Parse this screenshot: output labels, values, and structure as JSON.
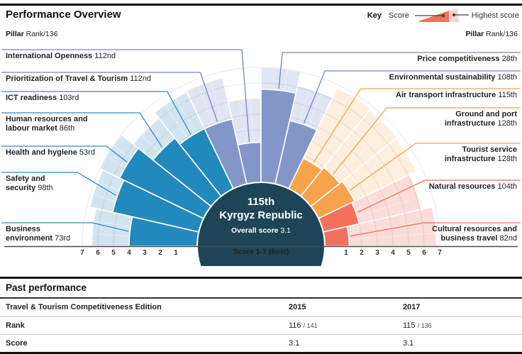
{
  "header": {
    "title": "Performance Overview",
    "key": {
      "label": "Key",
      "score": "Score",
      "highest": "Highest score"
    },
    "pillar_note": {
      "bold": "Pillar",
      "rest": " Rank/136"
    }
  },
  "chart_data": {
    "type": "radial_bar",
    "title": "Performance Overview",
    "scale": {
      "min": 1,
      "max": 7,
      "label": "Score 1-7 (best)"
    },
    "ticks": [
      1,
      2,
      3,
      4,
      5,
      6,
      7
    ],
    "center": {
      "rank": "115th",
      "name": "Kyrgyz Republic",
      "overall_label": "Overall score",
      "overall_score": "3.1"
    },
    "groups": [
      {
        "name": "enabling-environment",
        "color": "#2289bc",
        "light": "#d2e4ef",
        "line": "#2b8fbe"
      },
      {
        "name": "policy-and-conditions",
        "color": "#8297c8",
        "light": "#dfe5f2",
        "line": "#7288bf"
      },
      {
        "name": "infrastructure",
        "color": "#f5a34c",
        "light": "#fdeede",
        "line": "#f5a14b"
      },
      {
        "name": "natural-and-cultural",
        "color": "#f3705a",
        "light": "#fbdcd8",
        "line": "#f3705a"
      }
    ],
    "pillars": [
      {
        "name_lines": [
          "Business",
          "environment"
        ],
        "rank": "73rd",
        "group": 0,
        "score": 4.0,
        "highest": 6.4,
        "side": "left",
        "slot": 6
      },
      {
        "name_lines": [
          "Safety and",
          "security"
        ],
        "rank": "98th",
        "group": 0,
        "score": 5.3,
        "highest": 6.8,
        "side": "left",
        "slot": 5
      },
      {
        "name_lines": [
          "Health and hygiene"
        ],
        "rank": "53rd",
        "group": 0,
        "score": 5.6,
        "highest": 7.0,
        "side": "left",
        "slot": 4
      },
      {
        "name_lines": [
          "Human resources and",
          "labour market"
        ],
        "rank": "86th",
        "group": 0,
        "score": 4.4,
        "highest": 6.0,
        "side": "left",
        "slot": 3
      },
      {
        "name_lines": [
          "ICT readiness"
        ],
        "rank": "103rd",
        "group": 0,
        "score": 3.9,
        "highest": 6.5,
        "side": "left",
        "slot": 2
      },
      {
        "name_lines": [
          "Prioritization of Travel & Tourism"
        ],
        "rank": "112nd",
        "group": 1,
        "score": 3.9,
        "highest": 6.6,
        "side": "left",
        "slot": 1
      },
      {
        "name_lines": [
          "International Openness"
        ],
        "rank": "112nd",
        "group": 1,
        "score": 2.2,
        "highest": 5.0,
        "side": "left",
        "slot": 0
      },
      {
        "name_lines": [
          "Price competitiveness"
        ],
        "rank": "28th",
        "group": 1,
        "score": 5.6,
        "highest": 7.0,
        "side": "right",
        "slot": 0
      },
      {
        "name_lines": [
          "Environmental sustainability"
        ],
        "rank": "108th",
        "group": 1,
        "score": 3.8,
        "highest": 6.1,
        "side": "right",
        "slot": 1
      },
      {
        "name_lines": [
          "Air transport infrastructure"
        ],
        "rank": "115th",
        "group": 2,
        "score": 1.8,
        "highest": 6.8,
        "side": "right",
        "slot": 2
      },
      {
        "name_lines": [
          "Ground and port",
          "infrastructure"
        ],
        "rank": "128th",
        "group": 2,
        "score": 2.0,
        "highest": 6.7,
        "side": "right",
        "slot": 3
      },
      {
        "name_lines": [
          "Tourist service",
          "infrastructure"
        ],
        "rank": "128th",
        "group": 2,
        "score": 2.2,
        "highest": 6.6,
        "side": "right",
        "slot": 4
      },
      {
        "name_lines": [
          "Natural resources"
        ],
        "rank": "104th",
        "group": 3,
        "score": 2.0,
        "highest": 6.1,
        "side": "right",
        "slot": 5
      },
      {
        "name_lines": [
          "Cultural resources and",
          "business travel"
        ],
        "rank": "82nd",
        "group": 3,
        "score": 1.2,
        "highest": 6.8,
        "side": "right",
        "slot": 6
      }
    ]
  },
  "past_performance": {
    "title": "Past performance",
    "header_row": {
      "label": "Travel & Tourism Competitiveness Edition",
      "col1": "2015",
      "col2": "2017"
    },
    "rank_row": {
      "label": "Rank",
      "col1_main": "116",
      "col1_total": "/ 141",
      "col2_main": "115",
      "col2_total": "/ 136"
    },
    "score_row": {
      "label": "Score",
      "col1": "3.1",
      "col2": "3.1"
    }
  }
}
